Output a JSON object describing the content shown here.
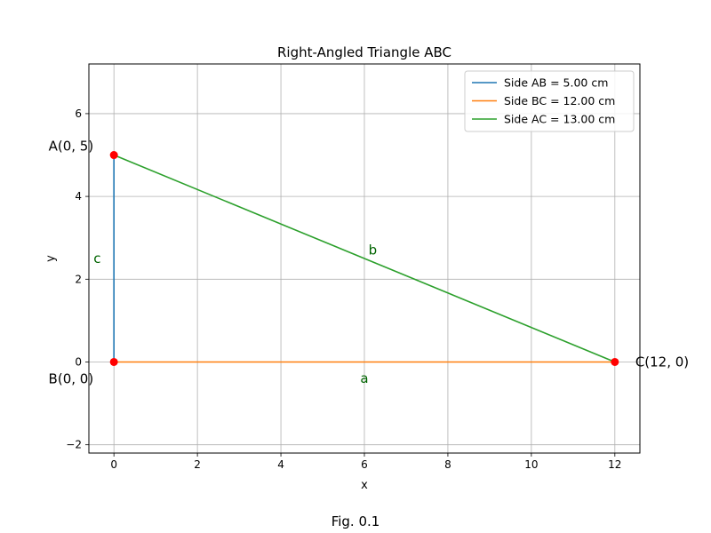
{
  "chart_data": {
    "type": "line",
    "title": "Right-Angled Triangle ABC",
    "xlabel": "x",
    "ylabel": "y",
    "xlim": [
      -0.6,
      12.6
    ],
    "ylim": [
      -2.2,
      7.2
    ],
    "x_ticks": [
      0,
      2,
      4,
      6,
      8,
      10,
      12
    ],
    "y_ticks": [
      -2,
      0,
      2,
      4,
      6
    ],
    "y_tick_labels": [
      "−2",
      "0",
      "2",
      "4",
      "6"
    ],
    "grid": true,
    "legend_position": "top-right",
    "series": [
      {
        "name": "Side AB = 5.00 cm",
        "color": "#1f77b4",
        "x": [
          0,
          0
        ],
        "y": [
          0,
          5
        ]
      },
      {
        "name": "Side BC = 12.00 cm",
        "color": "#ff7f0e",
        "x": [
          0,
          12
        ],
        "y": [
          0,
          0
        ]
      },
      {
        "name": "Side AC = 13.00 cm",
        "color": "#2ca02c",
        "x": [
          0,
          12
        ],
        "y": [
          5,
          0
        ]
      }
    ],
    "points": [
      {
        "label": "A(0, 5)",
        "x": 0,
        "y": 5
      },
      {
        "label": "B(0, 0)",
        "x": 0,
        "y": 0
      },
      {
        "label": "C(12, 0)",
        "x": 12,
        "y": 0
      }
    ],
    "point_color": "#ff0000",
    "side_labels": [
      {
        "text": "c",
        "x": -0.4,
        "y": 2.5
      },
      {
        "text": "b",
        "x": 6.2,
        "y": 2.7
      },
      {
        "text": "a",
        "x": 6.0,
        "y": -0.4
      }
    ],
    "side_label_color": "#006400"
  },
  "caption": "Fig. 0.1"
}
